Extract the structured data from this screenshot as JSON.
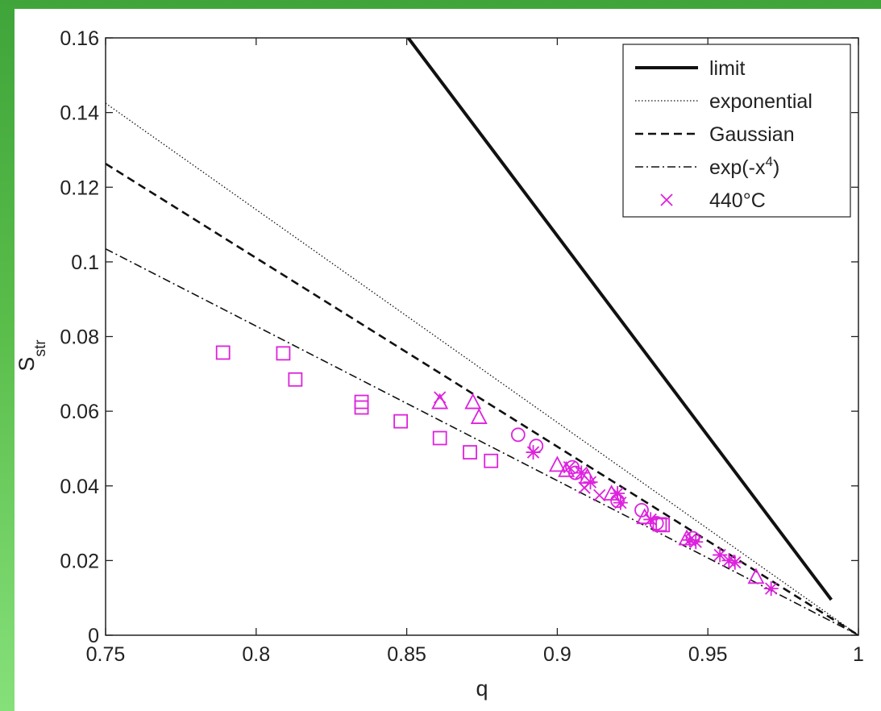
{
  "chart_data": {
    "type": "line",
    "title": "",
    "xlabel": "q",
    "ylabel_main": "S",
    "ylabel_sub": "str",
    "xlim": [
      0.75,
      1.0
    ],
    "ylim": [
      0,
      0.16
    ],
    "xticks": [
      "0.75",
      "0.8",
      "0.85",
      "0.9",
      "0.95",
      "1"
    ],
    "yticks": [
      "0",
      "0.02",
      "0.04",
      "0.06",
      "0.08",
      "0.1",
      "0.12",
      "0.14",
      "0.16"
    ],
    "grid": false,
    "legend_position": "top-right",
    "legend_entries": [
      {
        "label": "limit",
        "style": "solid"
      },
      {
        "label": "exponential",
        "style": "dotted"
      },
      {
        "label": "Gaussian",
        "style": "dashed"
      },
      {
        "label": "exp(-x",
        "sup": "4",
        "tail": ")",
        "style": "dashdot"
      },
      {
        "label": "440°C",
        "style": "marker-x"
      }
    ],
    "marker_color": "#dd22dd",
    "series": [
      {
        "style": "solid",
        "x": [
          0.8505,
          0.991
        ],
        "y": [
          0.16,
          0.0095
        ]
      },
      {
        "style": "dotted",
        "x": [
          0.75,
          1.0
        ],
        "y": [
          0.1425,
          0.0
        ]
      },
      {
        "style": "dashed",
        "x": [
          0.75,
          1.0
        ],
        "y": [
          0.1263,
          0.0
        ]
      },
      {
        "style": "dashdot",
        "x": [
          0.75,
          1.0
        ],
        "y": [
          0.1035,
          0.0
        ]
      }
    ],
    "markers": {
      "square": [
        [
          0.789,
          0.0757
        ],
        [
          0.809,
          0.0755
        ],
        [
          0.813,
          0.0685
        ],
        [
          0.835,
          0.0625
        ],
        [
          0.835,
          0.061
        ],
        [
          0.848,
          0.0573
        ],
        [
          0.861,
          0.0528
        ],
        [
          0.871,
          0.049
        ],
        [
          0.878,
          0.0467
        ],
        [
          0.934,
          0.0297
        ],
        [
          0.935,
          0.0295
        ]
      ],
      "triangle": [
        [
          0.861,
          0.0625
        ],
        [
          0.872,
          0.0625
        ],
        [
          0.874,
          0.0585
        ],
        [
          0.9,
          0.0457
        ],
        [
          0.903,
          0.0443
        ],
        [
          0.91,
          0.0425
        ],
        [
          0.918,
          0.038
        ],
        [
          0.929,
          0.0317
        ],
        [
          0.943,
          0.026
        ],
        [
          0.966,
          0.0157
        ]
      ],
      "circle": [
        [
          0.887,
          0.0537
        ],
        [
          0.893,
          0.0507
        ],
        [
          0.905,
          0.045
        ],
        [
          0.906,
          0.0435
        ],
        [
          0.92,
          0.036
        ],
        [
          0.928,
          0.0335
        ],
        [
          0.933,
          0.03
        ],
        [
          0.945,
          0.026
        ]
      ],
      "x": [
        [
          0.861,
          0.0637
        ],
        [
          0.904,
          0.045
        ],
        [
          0.909,
          0.0395
        ],
        [
          0.914,
          0.0375
        ]
      ],
      "asterisk": [
        [
          0.892,
          0.049
        ],
        [
          0.908,
          0.0435
        ],
        [
          0.911,
          0.041
        ],
        [
          0.92,
          0.038
        ],
        [
          0.921,
          0.0355
        ],
        [
          0.931,
          0.031
        ],
        [
          0.944,
          0.0255
        ],
        [
          0.946,
          0.025
        ],
        [
          0.954,
          0.0215
        ],
        [
          0.957,
          0.02
        ],
        [
          0.959,
          0.0195
        ],
        [
          0.971,
          0.0125
        ]
      ]
    }
  }
}
